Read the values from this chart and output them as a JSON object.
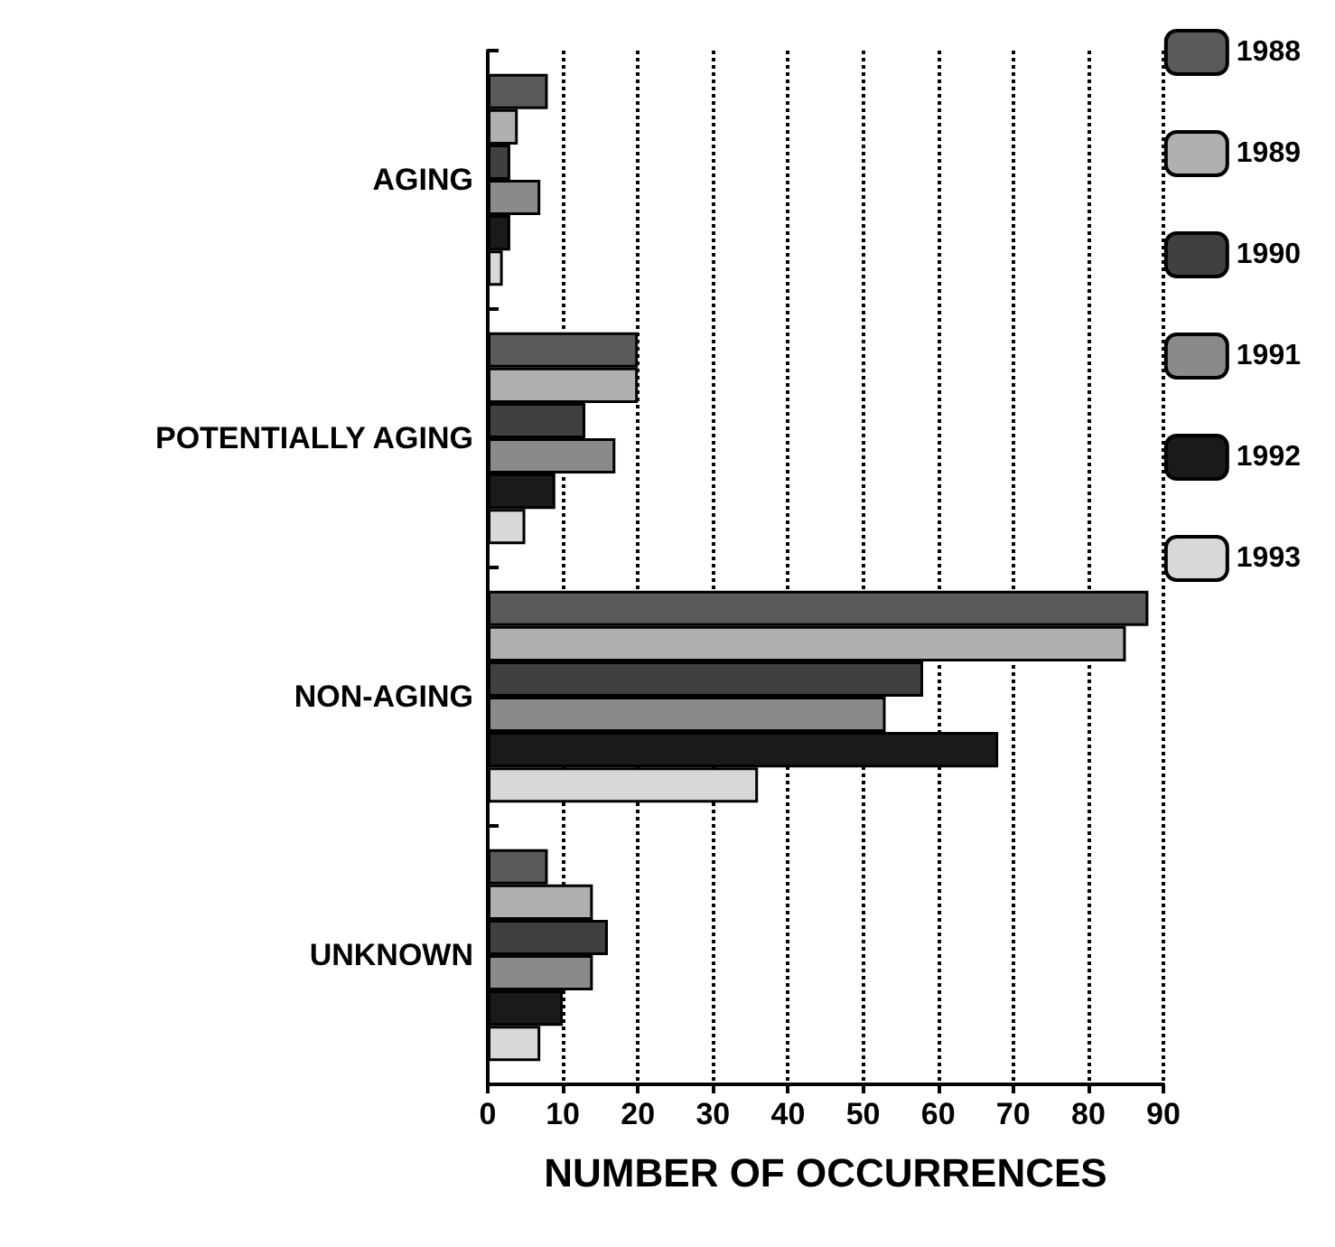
{
  "chart_data": {
    "type": "bar",
    "orientation": "horizontal",
    "xlabel": "NUMBER OF OCCURRENCES",
    "categories": [
      "AGING",
      "POTENTIALLY AGING",
      "NON-AGING",
      "UNKNOWN"
    ],
    "series": [
      {
        "name": "1988",
        "color": "#5a5a5a",
        "values": [
          8,
          20,
          88,
          8
        ]
      },
      {
        "name": "1989",
        "color": "#b0b0b0",
        "values": [
          4,
          20,
          85,
          14
        ]
      },
      {
        "name": "1990",
        "color": "#404040",
        "values": [
          3,
          13,
          58,
          16
        ]
      },
      {
        "name": "1991",
        "color": "#8a8a8a",
        "values": [
          7,
          17,
          53,
          14
        ]
      },
      {
        "name": "1992",
        "color": "#1a1a1a",
        "values": [
          3,
          9,
          68,
          10
        ]
      },
      {
        "name": "1993",
        "color": "#d8d8d8",
        "values": [
          2,
          5,
          36,
          7
        ]
      }
    ],
    "xlim": [
      0,
      90
    ],
    "xticks": [
      0,
      10,
      20,
      30,
      40,
      50,
      60,
      70,
      80,
      90
    ],
    "grid": "x",
    "legend": "right"
  }
}
